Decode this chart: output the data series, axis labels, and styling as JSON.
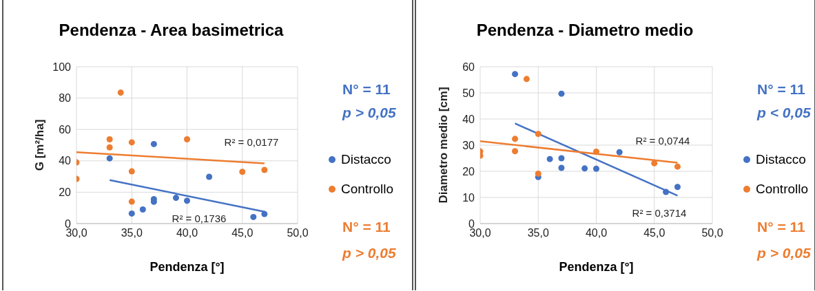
{
  "chart_data": [
    {
      "type": "scatter",
      "title": "Pendenza - Area basimetrica",
      "xlabel": "Pendenza [°]",
      "ylabel": "G [m²/ha]",
      "xlim": [
        30,
        50
      ],
      "xticks": [
        {
          "value": 30,
          "label": "30,0"
        },
        {
          "value": 35,
          "label": "35,0"
        },
        {
          "value": 40,
          "label": "40,0"
        },
        {
          "value": 45,
          "label": "45,0"
        },
        {
          "value": 50,
          "label": "50,0"
        }
      ],
      "ylim": [
        0,
        100
      ],
      "yticks": [
        0,
        20,
        40,
        60,
        80,
        100
      ],
      "grid": true,
      "legend": "right",
      "series": [
        {
          "name": "Distacco",
          "color": "#4472c4",
          "marker": "circle",
          "x": [
            33,
            35,
            36,
            37,
            37,
            37,
            39,
            40,
            42,
            46,
            47
          ],
          "values": [
            41.6,
            6.4,
            9,
            50.7,
            15.6,
            13.9,
            16.4,
            14.6,
            29.8,
            4.2,
            6.1
          ]
        },
        {
          "name": "Controllo",
          "color": "#ed7d31",
          "marker": "circle",
          "x": [
            30,
            30,
            33,
            33,
            34,
            35,
            35,
            35,
            40,
            45,
            47
          ],
          "values": [
            39,
            28.5,
            53.7,
            48.6,
            83.5,
            51.8,
            33.3,
            14,
            53.7,
            33,
            34.2
          ]
        },
        {
          "type": "line",
          "color": "#4472c4",
          "marker": "none",
          "x": [
            33,
            47
          ],
          "values": [
            27.7,
            7.6
          ]
        },
        {
          "type": "line",
          "color": "#ed7d31",
          "marker": "none",
          "x": [
            30,
            47
          ],
          "values": [
            45.5,
            38.4
          ]
        }
      ],
      "annotations": [
        "R² = 0,0177",
        "R² = 0,1736",
        "N° = 11",
        "p > 0,05",
        "N° = 11",
        "p > 0,05"
      ]
    },
    {
      "type": "scatter",
      "title": "Pendenza - Diametro medio",
      "xlabel": "Pendenza [°]",
      "ylabel": "Diametro medio [cm]",
      "xlim": [
        30,
        50
      ],
      "xticks": [
        {
          "value": 30,
          "label": "30,0"
        },
        {
          "value": 35,
          "label": "35,0"
        },
        {
          "value": 40,
          "label": "40,0"
        },
        {
          "value": 45,
          "label": "45,0"
        },
        {
          "value": 50,
          "label": "50,0"
        }
      ],
      "ylim": [
        0,
        60
      ],
      "yticks": [
        0,
        10,
        20,
        30,
        40,
        50,
        60
      ],
      "grid": true,
      "legend": "right",
      "series": [
        {
          "name": "Distacco",
          "color": "#4472c4",
          "marker": "circle",
          "x": [
            33,
            35,
            36,
            37,
            37,
            37,
            39,
            40,
            42,
            46,
            47
          ],
          "values": [
            57.2,
            17.8,
            24.7,
            49.7,
            25,
            21.3,
            21.1,
            21,
            27.3,
            12.1,
            14
          ]
        },
        {
          "name": "Controllo",
          "color": "#ed7d31",
          "marker": "circle",
          "x": [
            30,
            30,
            33,
            33,
            34,
            35,
            35,
            40,
            45,
            47
          ],
          "values": [
            27.6,
            26,
            32.4,
            27.7,
            55.3,
            34.3,
            19.1,
            27.5,
            23.1,
            21.8
          ]
        },
        {
          "type": "line",
          "color": "#4472c4",
          "marker": "none",
          "x": [
            33,
            47
          ],
          "values": [
            38.3,
            10.7
          ]
        },
        {
          "type": "line",
          "color": "#ed7d31",
          "marker": "none",
          "x": [
            30,
            47
          ],
          "values": [
            31.5,
            23.3
          ]
        }
      ],
      "annotations": [
        "R² = 0,0744",
        "R² = 0,3714",
        "N° = 11",
        "p < 0,05",
        "N° = 11",
        "p > 0,05"
      ]
    }
  ]
}
